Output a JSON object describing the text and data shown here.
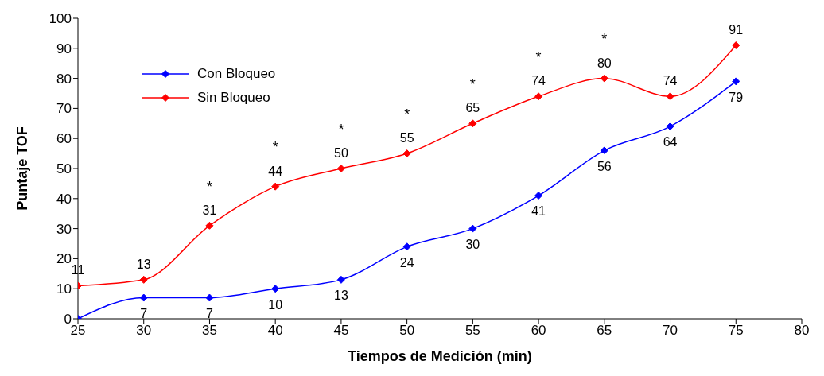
{
  "chart_data": {
    "type": "line",
    "xlabel": "Tiempos de Medición (min)",
    "ylabel": "Puntaje TOF",
    "x": [
      25,
      30,
      35,
      40,
      45,
      50,
      55,
      60,
      65,
      70,
      75
    ],
    "series": [
      {
        "name": "Con Bloqueo",
        "color": "#0000ff",
        "values": [
          0,
          7,
          7,
          10,
          13,
          24,
          30,
          41,
          56,
          64,
          79
        ],
        "value_labels": [
          null,
          "7",
          "7",
          "10",
          "13",
          "24",
          "30",
          "41",
          "56",
          "64",
          "79"
        ]
      },
      {
        "name": "Sin Bloqueo",
        "color": "#ff0000",
        "values": [
          11,
          13,
          31,
          44,
          50,
          55,
          65,
          74,
          80,
          74,
          91
        ],
        "value_labels": [
          "11",
          "13",
          "31",
          "44",
          "50",
          "55",
          "65",
          "74",
          "80",
          "74",
          "91"
        ]
      }
    ],
    "annotations": [
      {
        "text": "*",
        "x": 35,
        "y": 31
      },
      {
        "text": "*",
        "x": 40,
        "y": 44
      },
      {
        "text": "*",
        "x": 45,
        "y": 50
      },
      {
        "text": "*",
        "x": 50,
        "y": 55
      },
      {
        "text": "*",
        "x": 55,
        "y": 65
      },
      {
        "text": "*",
        "x": 60,
        "y": 74
      },
      {
        "text": "*",
        "x": 65,
        "y": 80
      }
    ],
    "xlim": [
      25,
      80
    ],
    "xticks": [
      25,
      30,
      35,
      40,
      45,
      50,
      55,
      60,
      65,
      70,
      75,
      80
    ],
    "ylim": [
      0,
      100
    ],
    "yticks": [
      0,
      10,
      20,
      30,
      40,
      50,
      60,
      70,
      80,
      90,
      100
    ],
    "grid": false,
    "legend": "top left",
    "marker": "diamond",
    "line_style": "solid"
  }
}
